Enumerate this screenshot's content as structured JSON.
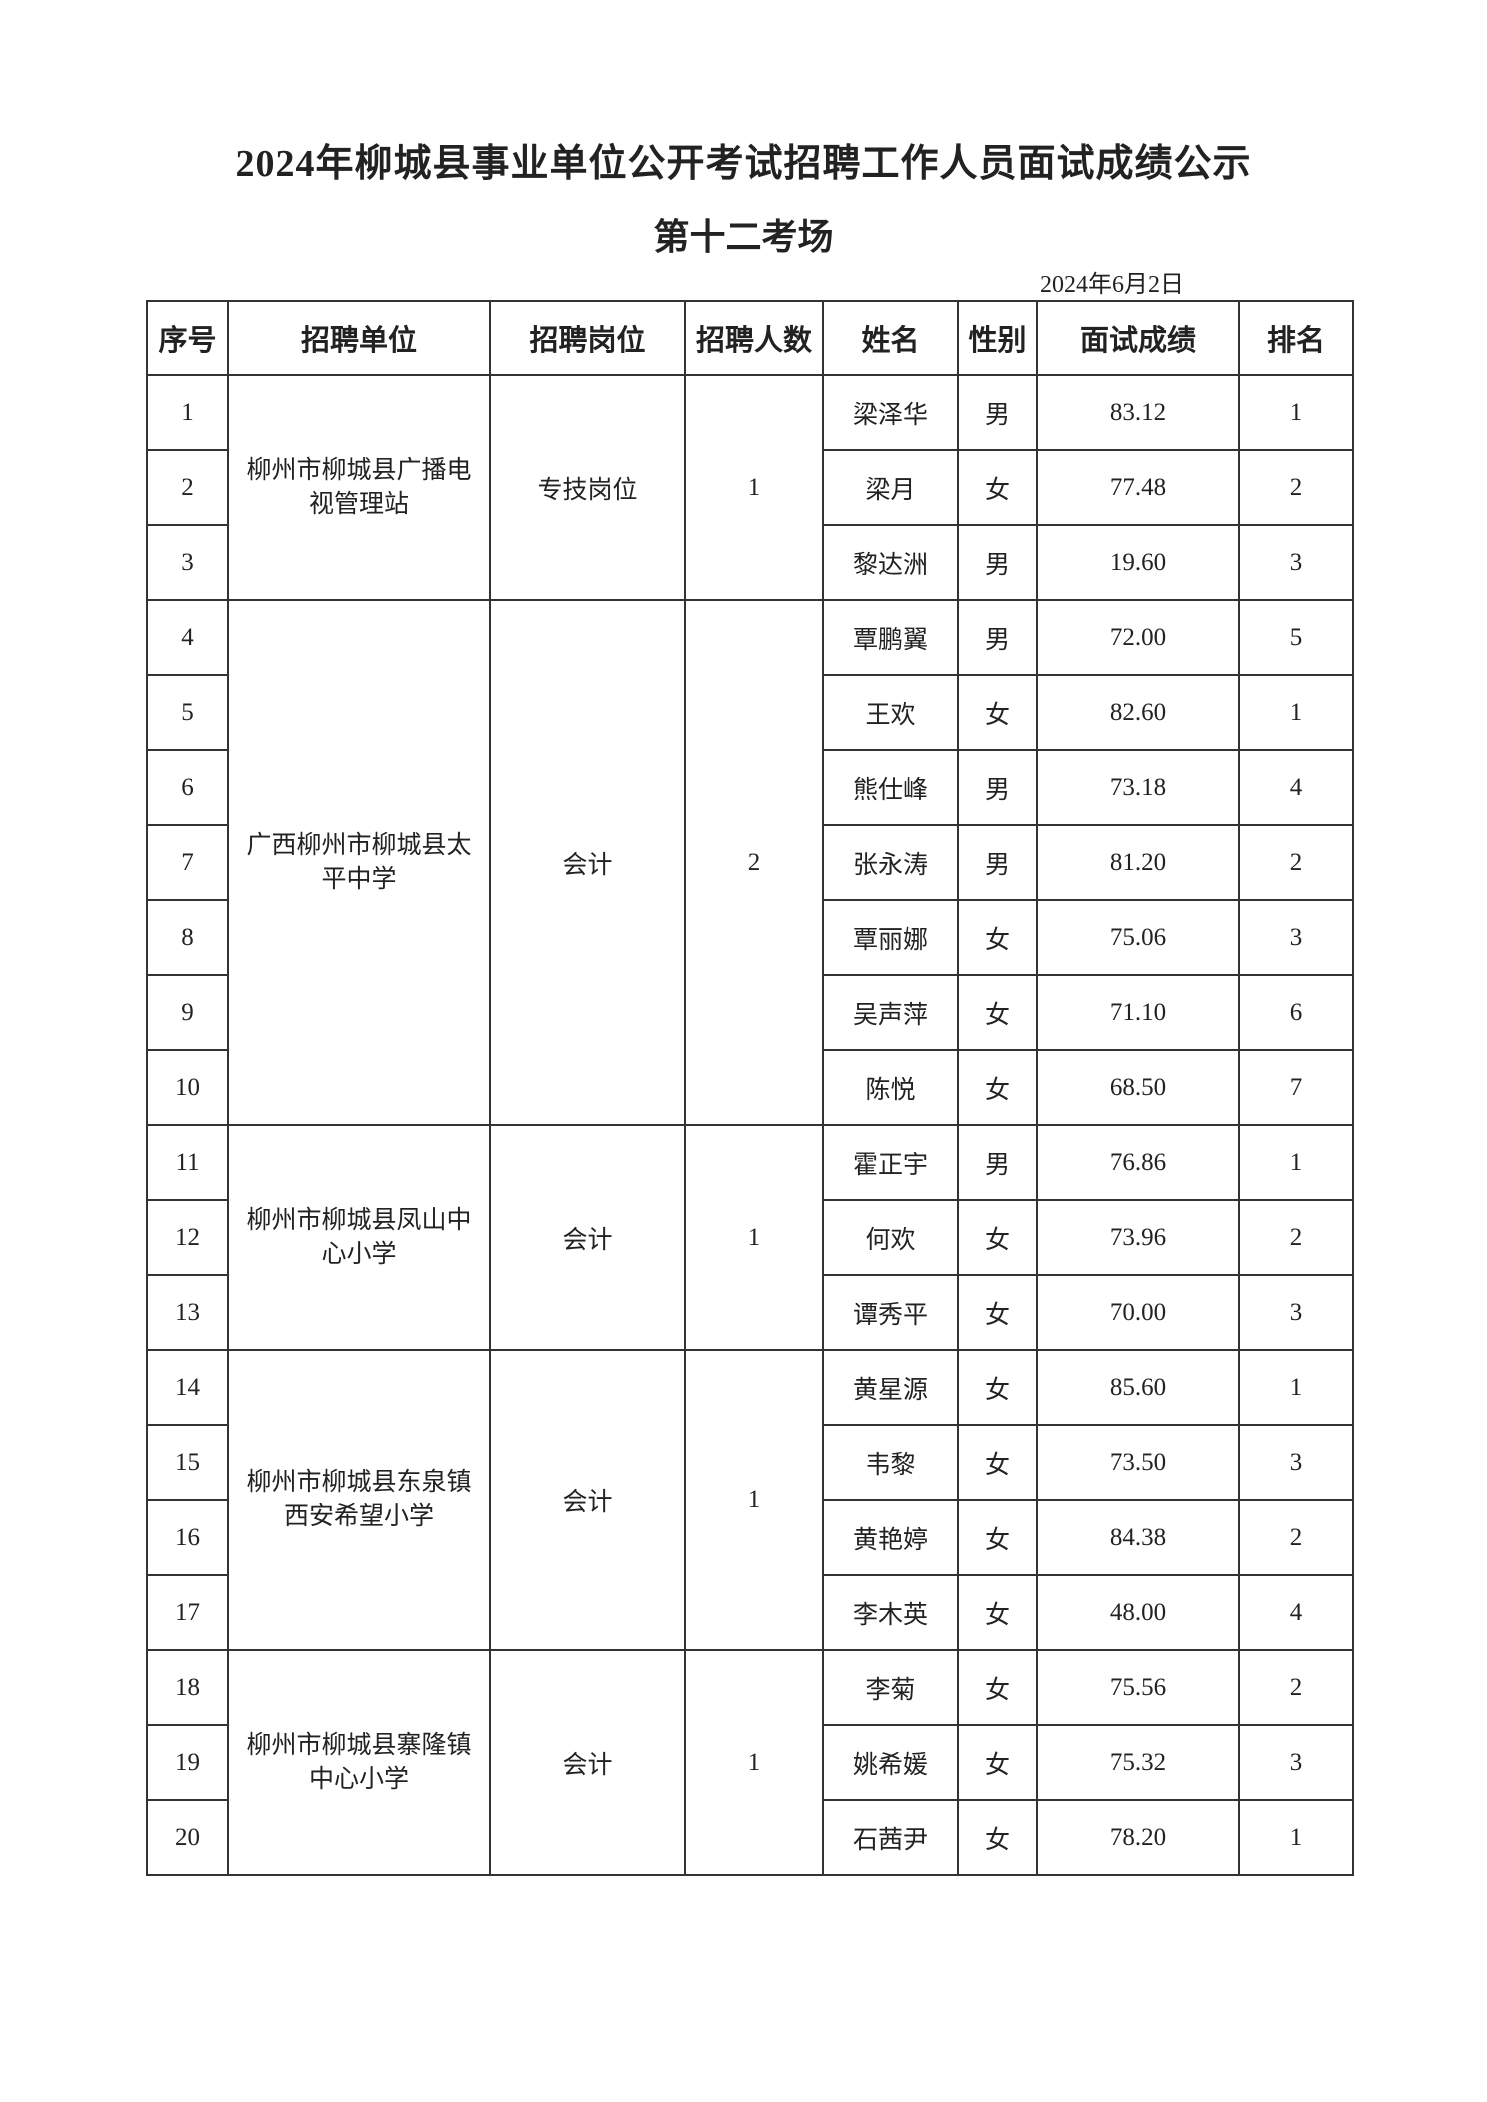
{
  "title": "2024年柳城县事业单位公开考试招聘工作人员面试成绩公示",
  "subtitle": "第十二考场",
  "date": "2024年6月2日",
  "columns": [
    "序号",
    "招聘单位",
    "招聘岗位",
    "招聘人数",
    "姓名",
    "性别",
    "面试成绩",
    "排名"
  ],
  "groups": [
    {
      "unit": "柳州市柳城县广播电视管理站",
      "position": "专技岗位",
      "count": "1",
      "rows": [
        {
          "no": "1",
          "name": "梁泽华",
          "gender": "男",
          "score": "83.12",
          "rank": "1"
        },
        {
          "no": "2",
          "name": "梁月",
          "gender": "女",
          "score": "77.48",
          "rank": "2"
        },
        {
          "no": "3",
          "name": "黎达洲",
          "gender": "男",
          "score": "19.60",
          "rank": "3"
        }
      ]
    },
    {
      "unit": "广西柳州市柳城县太平中学",
      "position": "会计",
      "count": "2",
      "rows": [
        {
          "no": "4",
          "name": "覃鹏翼",
          "gender": "男",
          "score": "72.00",
          "rank": "5"
        },
        {
          "no": "5",
          "name": "王欢",
          "gender": "女",
          "score": "82.60",
          "rank": "1"
        },
        {
          "no": "6",
          "name": "熊仕峰",
          "gender": "男",
          "score": "73.18",
          "rank": "4"
        },
        {
          "no": "7",
          "name": "张永涛",
          "gender": "男",
          "score": "81.20",
          "rank": "2"
        },
        {
          "no": "8",
          "name": "覃丽娜",
          "gender": "女",
          "score": "75.06",
          "rank": "3"
        },
        {
          "no": "9",
          "name": "吴声萍",
          "gender": "女",
          "score": "71.10",
          "rank": "6"
        },
        {
          "no": "10",
          "name": "陈悦",
          "gender": "女",
          "score": "68.50",
          "rank": "7"
        }
      ]
    },
    {
      "unit": "柳州市柳城县凤山中心小学",
      "position": "会计",
      "count": "1",
      "rows": [
        {
          "no": "11",
          "name": "霍正宇",
          "gender": "男",
          "score": "76.86",
          "rank": "1"
        },
        {
          "no": "12",
          "name": "何欢",
          "gender": "女",
          "score": "73.96",
          "rank": "2"
        },
        {
          "no": "13",
          "name": "谭秀平",
          "gender": "女",
          "score": "70.00",
          "rank": "3"
        }
      ]
    },
    {
      "unit": "柳州市柳城县东泉镇西安希望小学",
      "position": "会计",
      "count": "1",
      "rows": [
        {
          "no": "14",
          "name": "黄星源",
          "gender": "女",
          "score": "85.60",
          "rank": "1"
        },
        {
          "no": "15",
          "name": "韦黎",
          "gender": "女",
          "score": "73.50",
          "rank": "3"
        },
        {
          "no": "16",
          "name": "黄艳婷",
          "gender": "女",
          "score": "84.38",
          "rank": "2"
        },
        {
          "no": "17",
          "name": "李木英",
          "gender": "女",
          "score": "48.00",
          "rank": "4"
        }
      ]
    },
    {
      "unit": "柳州市柳城县寨隆镇中心小学",
      "position": "会计",
      "count": "1",
      "rows": [
        {
          "no": "18",
          "name": "李菊",
          "gender": "女",
          "score": "75.56",
          "rank": "2"
        },
        {
          "no": "19",
          "name": "姚希媛",
          "gender": "女",
          "score": "75.32",
          "rank": "3"
        },
        {
          "no": "20",
          "name": "石茜尹",
          "gender": "女",
          "score": "78.20",
          "rank": "1"
        }
      ]
    }
  ]
}
